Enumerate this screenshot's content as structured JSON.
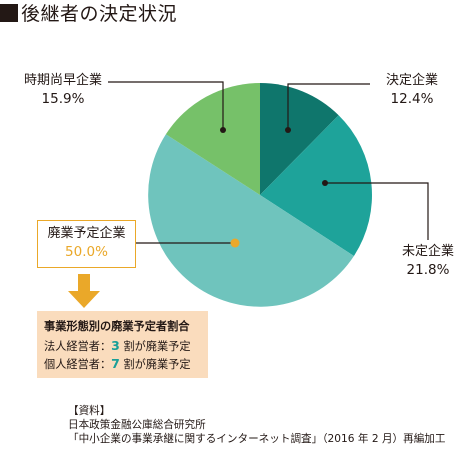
{
  "title": "後継者の決定状況",
  "chart_data": {
    "type": "pie",
    "title": "後継者の決定状況",
    "slices": [
      {
        "label": "決定企業",
        "value": 12.4,
        "display": "12.4%",
        "color": "#0f766c"
      },
      {
        "label": "未定企業",
        "value": 21.8,
        "display": "21.8%",
        "color": "#1ea39a"
      },
      {
        "label": "廃業予定企業",
        "value": 50.0,
        "display": "50.0%",
        "color": "#6fc4bd"
      },
      {
        "label": "時期尚早企業",
        "value": 15.9,
        "display": "15.9%",
        "color": "#76c169"
      }
    ],
    "start": "12 o'clock",
    "direction": "clockwise"
  },
  "breakdown": {
    "heading": "事業形態別の廃業予定者割合",
    "rows": [
      {
        "prefix": "法人経営者：",
        "num": "3",
        "suffix": "割が廃業予定"
      },
      {
        "prefix": "個人経営者：",
        "num": "7",
        "suffix": "割が廃業予定"
      }
    ]
  },
  "source": {
    "heading": "【資料】",
    "line1": "日本政策金融公庫総合研究所",
    "line2": "「中小企業の事業承継に関するインターネット調査」（2016 年 2 月）再編加工"
  },
  "colors": {
    "accent": "#eaa829",
    "box": "#fadcbd",
    "line": "#231815"
  }
}
